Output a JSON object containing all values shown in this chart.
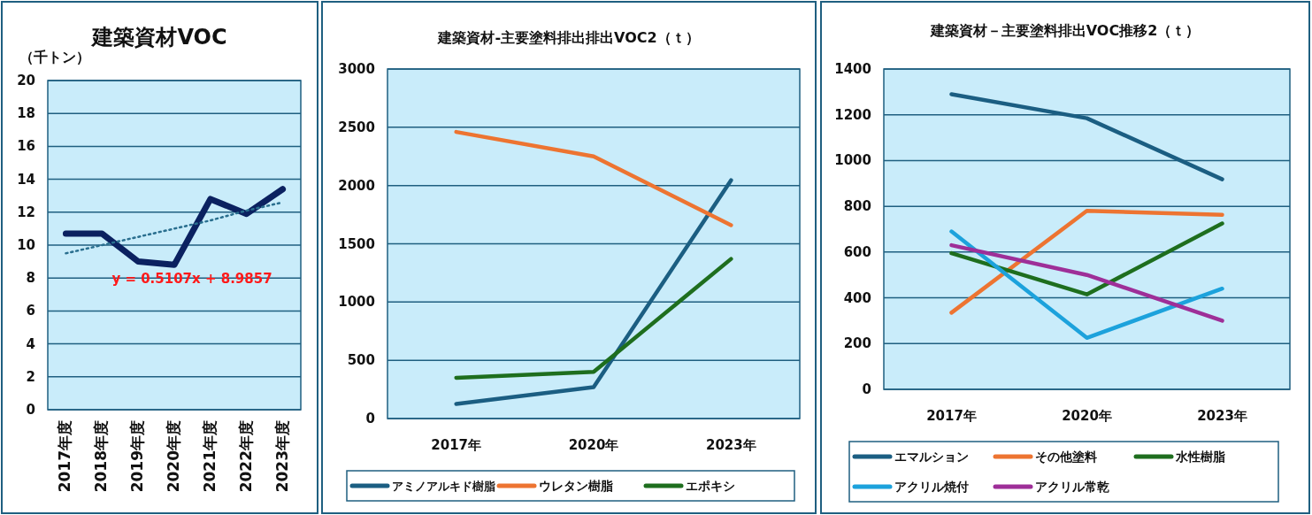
{
  "chart_data": [
    {
      "type": "line",
      "title": "建築資材VOC",
      "ylabel": "（千トン）",
      "categories": [
        "2017年度",
        "2018年度",
        "2019年度",
        "2020年度",
        "2021年度",
        "2022年度",
        "2023年度"
      ],
      "series": [
        {
          "color": "#0b2160",
          "values": [
            10.7,
            10.7,
            9.0,
            8.8,
            12.8,
            11.9,
            13.4
          ]
        },
        {
          "type": "line",
          "color": "#2a6f8f",
          "line_style": "dotted",
          "values": [
            9.5,
            10.0,
            10.5,
            11.0,
            11.5,
            12.1,
            12.6
          ]
        }
      ],
      "ylim": [
        0,
        20
      ],
      "yticks": [
        0,
        2,
        4,
        6,
        8,
        10,
        12,
        14,
        16,
        18,
        20
      ],
      "grid": "y",
      "legend": false,
      "annotations": [
        "y = 0.5107x + 8.9857"
      ]
    },
    {
      "type": "line",
      "title": "建築資材-主要塗料排出排出VOC2（ｔ）",
      "categories": [
        "2017年",
        "2020年",
        "2023年"
      ],
      "series": [
        {
          "name": "アミノアルキド樹脂",
          "color": "#1b5e82",
          "values": [
            125,
            270,
            2045
          ]
        },
        {
          "name": "ウレタン樹脂",
          "color": "#ed7431",
          "values": [
            2460,
            2250,
            1660
          ]
        },
        {
          "name": "エポキシ",
          "color": "#1e6e1e",
          "values": [
            350,
            400,
            1370
          ]
        }
      ],
      "ylim": [
        0,
        3000
      ],
      "yticks": [
        0,
        500,
        1000,
        1500,
        2000,
        2500,
        3000
      ],
      "grid": "y",
      "legend": "bottom"
    },
    {
      "type": "line",
      "title": "建築資材－主要塗料排出VOC推移2（ｔ）",
      "categories": [
        "2017年",
        "2020年",
        "2023年"
      ],
      "series": [
        {
          "name": "エマルション",
          "color": "#1b5e82",
          "values": [
            1290,
            1185,
            918
          ]
        },
        {
          "name": "その他塗料",
          "color": "#ed7431",
          "values": [
            335,
            780,
            763
          ]
        },
        {
          "name": "水性樹脂",
          "color": "#1e6e1e",
          "values": [
            595,
            415,
            725
          ]
        },
        {
          "name": "アクリル焼付",
          "color": "#1ca2dc",
          "values": [
            690,
            225,
            440
          ]
        },
        {
          "name": "アクリル常乾",
          "color": "#9e2f98",
          "values": [
            630,
            500,
            300
          ]
        }
      ],
      "ylim": [
        0,
        1400
      ],
      "yticks": [
        0,
        200,
        400,
        600,
        800,
        1000,
        1200,
        1400
      ],
      "grid": "y",
      "legend": "bottom"
    }
  ]
}
